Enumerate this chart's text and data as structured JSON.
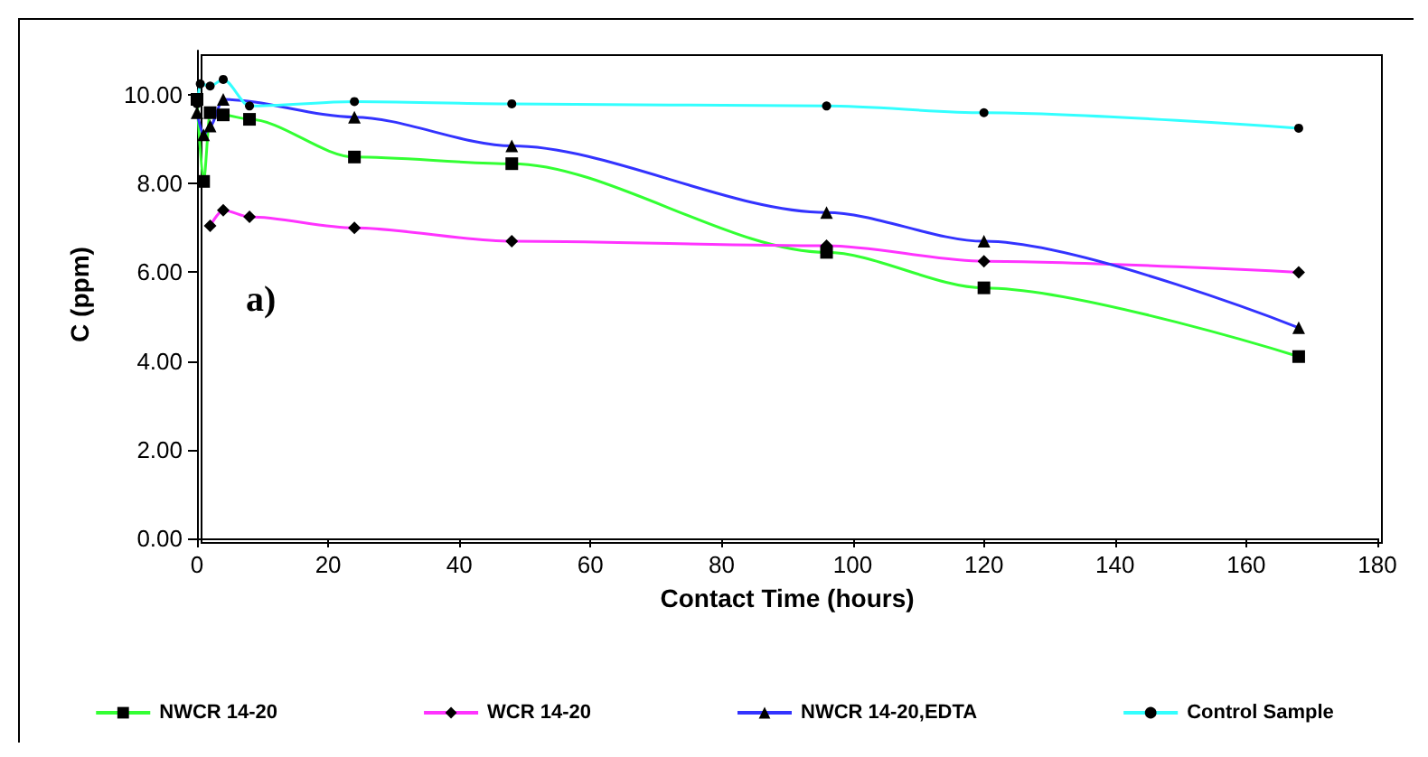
{
  "chart_data": {
    "type": "line",
    "xlabel": "Contact Time (hours)",
    "ylabel": "C (ppm)",
    "xlim": [
      0,
      180
    ],
    "xticks": [
      0,
      20,
      40,
      60,
      80,
      100,
      120,
      140,
      160,
      180
    ],
    "ylim": [
      0,
      11
    ],
    "yticks": [
      {
        "value": 0,
        "label": "0.00"
      },
      {
        "value": 2,
        "label": "2.00"
      },
      {
        "value": 4,
        "label": "4.00"
      },
      {
        "value": 6,
        "label": "6.00"
      },
      {
        "value": 8,
        "label": "8.00"
      },
      {
        "value": 10,
        "label": "10.00"
      }
    ],
    "grid": false,
    "legend": "bottom",
    "line_style": "solid",
    "annotations": [
      "a)"
    ],
    "series": [
      {
        "name": "NWCR 14-20",
        "color": "#33ff33",
        "marker": "square",
        "x": [
          0,
          0.5,
          1,
          2,
          4,
          8,
          24,
          48,
          96,
          120,
          168
        ],
        "values": [
          9.9,
          null,
          8.05,
          9.6,
          9.55,
          9.45,
          8.6,
          8.45,
          6.45,
          5.65,
          4.1
        ]
      },
      {
        "name": "WCR 14-20",
        "color": "#ff33ff",
        "marker": "diamond",
        "x": [
          2,
          4,
          8,
          24,
          48,
          96,
          120,
          168
        ],
        "values": [
          7.05,
          7.4,
          7.25,
          7.0,
          6.7,
          6.6,
          6.25,
          6.0
        ]
      },
      {
        "name": "NWCR 14-20,EDTA",
        "color": "#3333ff",
        "marker": "triangle",
        "x": [
          0,
          1,
          2,
          4,
          8,
          24,
          48,
          96,
          120,
          168
        ],
        "values": [
          9.6,
          9.1,
          9.3,
          9.9,
          null,
          9.5,
          8.85,
          7.35,
          6.7,
          4.75
        ]
      },
      {
        "name": "Control Sample",
        "color": "#33ffff",
        "marker": "circle",
        "x": [
          0,
          0.5,
          2,
          4,
          8,
          24,
          48,
          96,
          120,
          168
        ],
        "values": [
          9.8,
          10.25,
          10.2,
          10.35,
          9.75,
          9.85,
          9.8,
          9.75,
          9.6,
          9.25
        ]
      }
    ]
  }
}
